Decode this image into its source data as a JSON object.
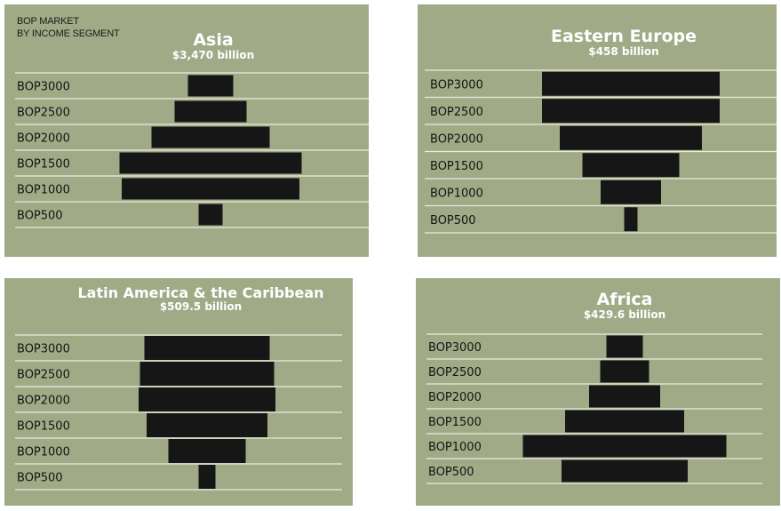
{
  "header_note": [
    "BOP MARKET",
    "BY INCOME SEGMENT"
  ],
  "colors": {
    "panel": "#a1aa86",
    "bar": "#161616",
    "rule": "#e9ece0",
    "title": "#ffffff"
  },
  "chart_data": [
    {
      "type": "bar",
      "orientation": "horizontal-centered",
      "title": "Asia",
      "subtitle": "$3,470 billion",
      "categories": [
        "BOP3000",
        "BOP2500",
        "BOP2000",
        "BOP1500",
        "BOP1000",
        "BOP500"
      ],
      "values": [
        51,
        81,
        133,
        205,
        200,
        27
      ]
    },
    {
      "type": "bar",
      "orientation": "horizontal-centered",
      "title": "Eastern Europe",
      "subtitle": "$458 billion",
      "categories": [
        "BOP3000",
        "BOP2500",
        "BOP2000",
        "BOP1500",
        "BOP1000",
        "BOP500"
      ],
      "values": [
        200,
        200,
        160,
        109,
        68,
        15
      ]
    },
    {
      "type": "bar",
      "orientation": "horizontal-centered",
      "title": "Latin America & the Caribbean",
      "subtitle": "$509.5 billion",
      "categories": [
        "BOP3000",
        "BOP2500",
        "BOP2000",
        "BOP1500",
        "BOP1000",
        "BOP500"
      ],
      "values": [
        141,
        151,
        154,
        136,
        87,
        19
      ]
    },
    {
      "type": "bar",
      "orientation": "horizontal-centered",
      "title": "Africa",
      "subtitle": "$429.6 billion",
      "categories": [
        "BOP3000",
        "BOP2500",
        "BOP2000",
        "BOP1500",
        "BOP1000",
        "BOP500"
      ],
      "values": [
        41,
        55,
        80,
        134,
        229,
        142
      ]
    }
  ]
}
